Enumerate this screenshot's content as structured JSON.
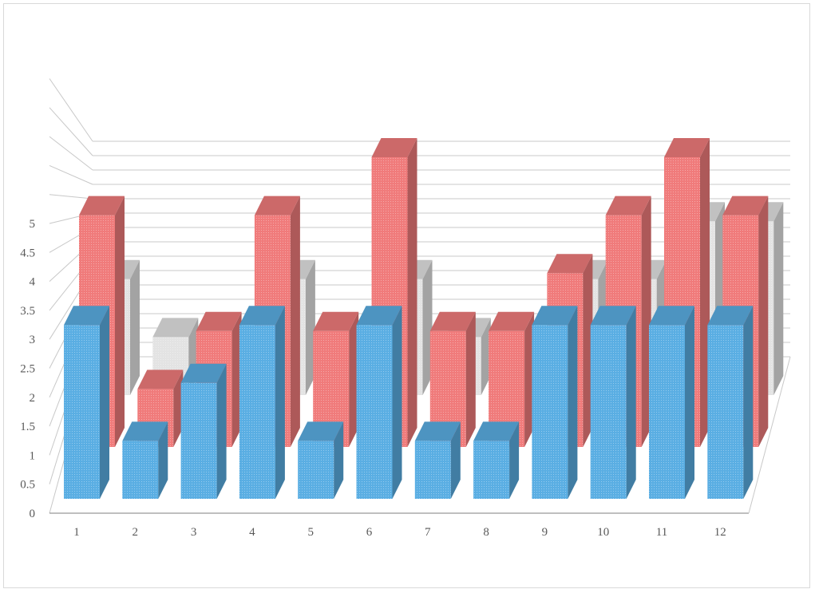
{
  "chart_data": {
    "type": "bar",
    "variant": "3d-column",
    "title": "",
    "xlabel": "",
    "ylabel": "",
    "categories": [
      "1",
      "2",
      "3",
      "4",
      "5",
      "6",
      "7",
      "8",
      "9",
      "10",
      "11",
      "12"
    ],
    "ylim": [
      0,
      5
    ],
    "yticks": [
      "0",
      "0.5",
      "1",
      "1.5",
      "2",
      "2.5",
      "3",
      "3.5",
      "4",
      "4.5",
      "5"
    ],
    "grid": true,
    "legend": "none",
    "series": [
      {
        "color": "#5aaee3",
        "values": [
          3,
          1,
          2,
          3,
          1,
          3,
          1,
          1,
          3,
          3,
          3,
          3
        ]
      },
      {
        "color": "#f07b7b",
        "values": [
          4,
          1,
          2,
          4,
          2,
          5,
          2,
          2,
          3,
          4,
          5,
          4
        ]
      },
      {
        "color": "#e3e3e3",
        "values": [
          2,
          1,
          0,
          2,
          0,
          2,
          1,
          0,
          2,
          2,
          3,
          3
        ]
      }
    ]
  }
}
